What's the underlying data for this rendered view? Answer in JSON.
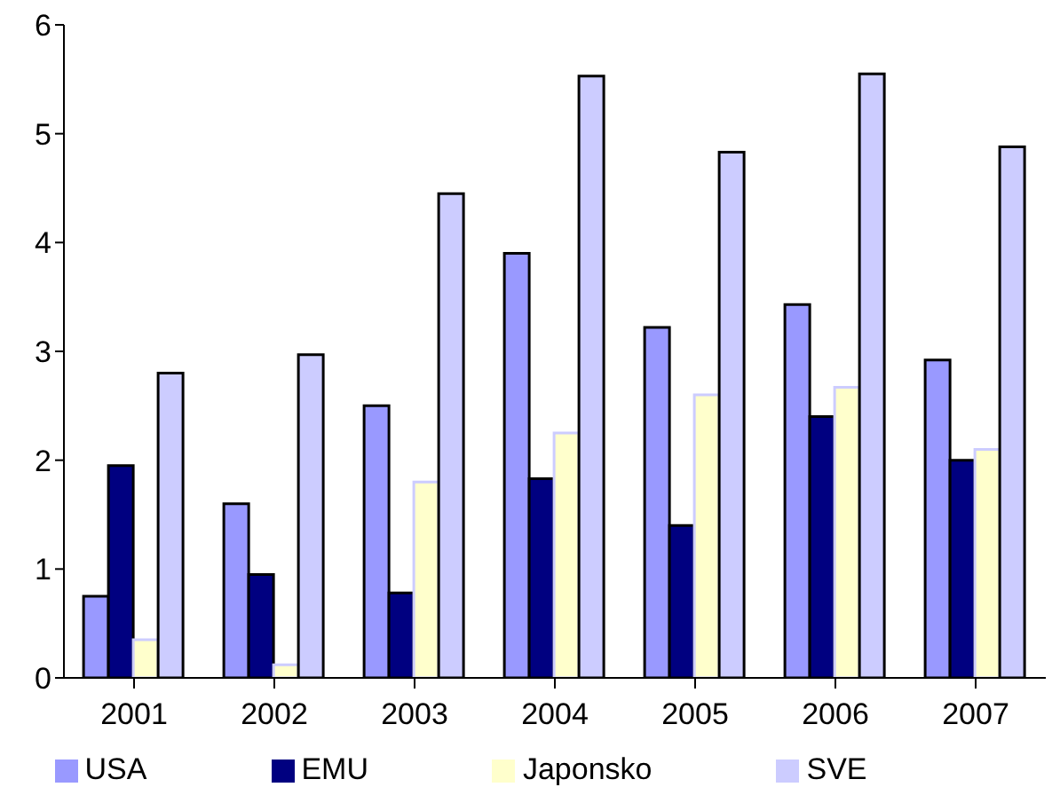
{
  "chart_data": {
    "type": "bar",
    "categories": [
      "2001",
      "2002",
      "2003",
      "2004",
      "2005",
      "2006",
      "2007"
    ],
    "series": [
      {
        "name": "USA",
        "color": "#9999ff",
        "values": [
          0.75,
          1.6,
          2.5,
          3.9,
          3.22,
          3.43,
          2.92
        ]
      },
      {
        "name": "EMU",
        "color": "#000080",
        "values": [
          1.95,
          0.95,
          0.78,
          1.83,
          1.4,
          2.4,
          2.0
        ]
      },
      {
        "name": "Japonsko",
        "color": "#ffffcc",
        "values": [
          0.35,
          0.12,
          1.8,
          2.25,
          2.6,
          2.67,
          2.1
        ]
      },
      {
        "name": "SVE",
        "color": "#ccccff",
        "values": [
          2.8,
          2.97,
          4.45,
          5.53,
          4.83,
          5.55,
          4.88
        ]
      }
    ],
    "ylim": [
      0,
      6
    ],
    "yticks": [
      0,
      1,
      2,
      3,
      4,
      5,
      6
    ],
    "legend": "bottom"
  }
}
